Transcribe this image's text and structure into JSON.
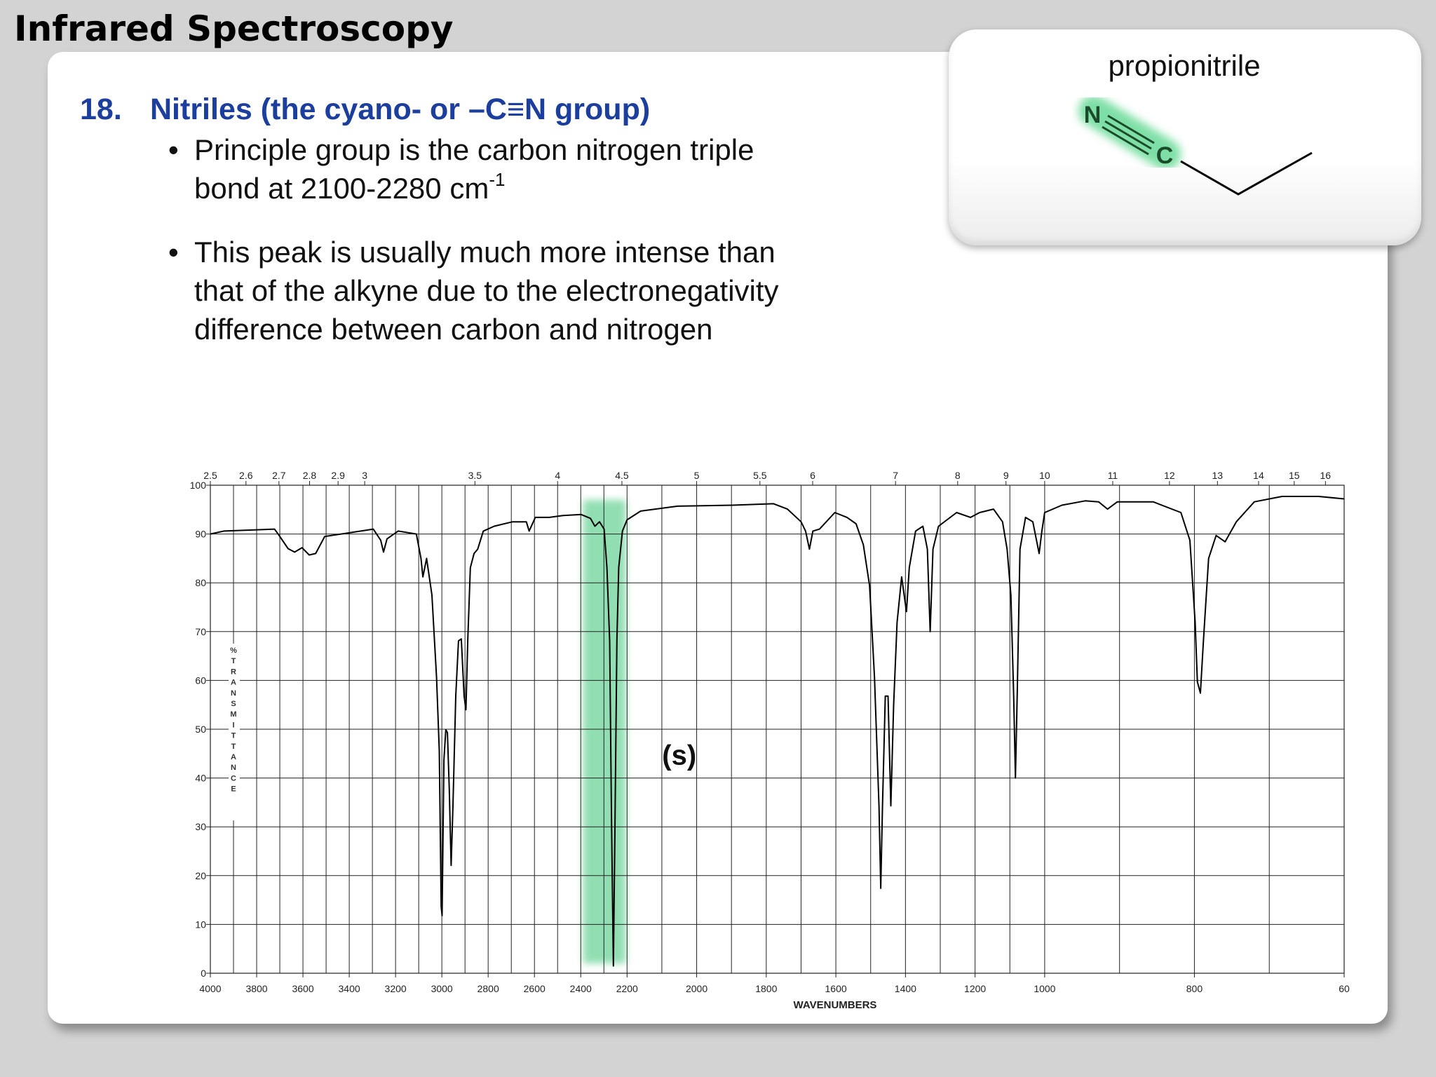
{
  "slide": {
    "title": "Infrared Spectroscopy",
    "heading": {
      "number": "18.",
      "text": "Nitriles (the cyano- or –C≡N group)"
    },
    "bullets": [
      {
        "lines": [
          "Principle group is the carbon nitrogen triple",
          "bond at 2100-2280 cm"
        ],
        "superscript": "-1"
      },
      {
        "lines": [
          "This peak is usually much more intense than",
          "that of the alkyne due to the electronegativity",
          "difference between carbon and nitrogen"
        ]
      }
    ],
    "molecule": {
      "name": "propionitrile",
      "atoms": [
        "N",
        "C"
      ]
    }
  },
  "chart_data": {
    "type": "line",
    "x_label": "WAVENUMBERS",
    "y_label": "%TRANSMITTANCE",
    "x": [
      4000,
      3941,
      3723,
      3703,
      3664,
      3636,
      3604,
      3573,
      3545,
      3506,
      3407,
      3296,
      3264,
      3252,
      3237,
      3189,
      3110,
      3090,
      3082,
      3066,
      3043,
      3023,
      3011,
      3003,
      2999,
      2991,
      2983,
      2976,
      2968,
      2960,
      2952,
      2940,
      2928,
      2916,
      2904,
      2896,
      2888,
      2877,
      2861,
      2845,
      2821,
      2774,
      2695,
      2635,
      2623,
      2596,
      2536,
      2477,
      2398,
      2358,
      2339,
      2319,
      2299,
      2287,
      2275,
      2267,
      2259,
      2252,
      2244,
      2236,
      2220,
      2200,
      2161,
      2055,
      1897,
      1779,
      1739,
      1700,
      1687,
      1676,
      1666,
      1647,
      1603,
      1568,
      1542,
      1521,
      1503,
      1489,
      1476,
      1471,
      1466,
      1458,
      1450,
      1442,
      1434,
      1424,
      1411,
      1397,
      1389,
      1371,
      1350,
      1337,
      1329,
      1321,
      1305,
      1253,
      1213,
      1187,
      1147,
      1121,
      1108,
      1097,
      1089,
      1084,
      1079,
      1071,
      1055,
      1034,
      1016,
      1008,
      1000,
      977,
      946,
      928,
      916,
      903,
      855,
      818,
      806,
      799,
      796,
      792,
      788,
      781,
      771,
      759,
      744,
      720,
      683,
      634,
      600
    ],
    "series": [
      {
        "color": "#000000",
        "values": [
          90,
          90.6,
          91,
          89.7,
          87,
          86.3,
          87.2,
          85.7,
          86,
          89.5,
          90.2,
          91,
          88.7,
          86.3,
          89,
          90.6,
          90,
          85,
          81.2,
          85,
          77.5,
          60.6,
          45.6,
          13.7,
          11.8,
          43.7,
          49.9,
          49.3,
          38,
          22.1,
          34.3,
          56.8,
          68.1,
          68.5,
          56.8,
          54,
          68.1,
          83.1,
          86,
          86.9,
          90.6,
          91.6,
          92.5,
          92.5,
          90.6,
          93.4,
          93.4,
          93.8,
          94,
          93.2,
          91.6,
          92.5,
          91,
          83.1,
          68.1,
          30.6,
          1.5,
          30.6,
          68.1,
          83.1,
          90.6,
          92.9,
          94.7,
          95.7,
          95.9,
          96.2,
          95.1,
          92.5,
          90.6,
          86.9,
          90.6,
          91,
          94.4,
          93.4,
          92.1,
          87.8,
          79.4,
          60.6,
          34.3,
          17.4,
          34.3,
          56.8,
          56.8,
          34.3,
          55,
          71.9,
          81.2,
          74.1,
          83.1,
          90.6,
          91.6,
          86.9,
          70,
          86.9,
          91.6,
          94.4,
          93.4,
          94.4,
          95.1,
          92.5,
          86.9,
          77.5,
          56.8,
          40,
          56.8,
          86.9,
          93.4,
          92.5,
          86,
          90.6,
          94.4,
          95.9,
          96.8,
          96.6,
          95.1,
          96.6,
          96.6,
          94.4,
          88.7,
          71.9,
          59.7,
          57.4,
          68.1,
          85,
          89.7,
          88.4,
          92.5,
          96.6,
          97.7,
          97.7,
          97.2
        ]
      }
    ],
    "xlim": [
      4000,
      600
    ],
    "x_breaks": [
      2200,
      1000
    ],
    "xticks": [
      4000,
      3800,
      3600,
      3400,
      3200,
      3000,
      2800,
      2600,
      2400,
      2200,
      2000,
      1800,
      1600,
      1400,
      1200,
      1000,
      800,
      {
        "value": 600,
        "label": "60"
      }
    ],
    "x2ticks": [
      2.5,
      2.6,
      2.7,
      2.8,
      2.9,
      3,
      3.5,
      4,
      4.5,
      5,
      5.5,
      6,
      7,
      8,
      9,
      10,
      11,
      12,
      13,
      14,
      15,
      16
    ],
    "ylim": [
      0,
      100
    ],
    "yticks": [
      0,
      10,
      20,
      30,
      40,
      50,
      60,
      70,
      80,
      90,
      100
    ],
    "grid": true,
    "highlight": {
      "x": [
        2390,
        2205
      ],
      "y": [
        2,
        97
      ],
      "color": "#7fd9a6"
    },
    "annotation": {
      "text": "(s)",
      "x": 2050,
      "y": 44.5
    }
  }
}
